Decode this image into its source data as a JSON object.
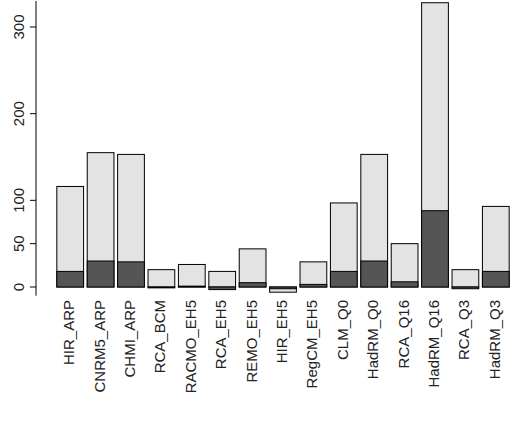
{
  "chart_data": {
    "type": "bar",
    "categories": [
      "HIR_ARP",
      "CNRM5_ARP",
      "CHMI_ARP",
      "RCA_BCM",
      "RACMO_EH5",
      "RCA_EH5",
      "REMO_EH5",
      "HIR_EH5",
      "RegCM_EH5",
      "CLM_Q0",
      "HadRM_Q0",
      "RCA_Q16",
      "HadRM_Q16",
      "RCA_Q3",
      "HadRM_Q3"
    ],
    "series": [
      {
        "color": "#e3e3e3",
        "values": [
          116,
          155,
          153,
          20,
          26,
          18,
          44,
          -6,
          29,
          97,
          153,
          50,
          328,
          20,
          93
        ]
      },
      {
        "color": "#555555",
        "values": [
          18,
          30,
          29,
          -1,
          1,
          -3,
          5,
          -2,
          3,
          18,
          30,
          6,
          88,
          -2,
          18
        ]
      }
    ],
    "ylim": [
      -10,
      330
    ],
    "yticks": [
      0,
      50,
      100,
      200,
      300
    ],
    "grid": false
  }
}
